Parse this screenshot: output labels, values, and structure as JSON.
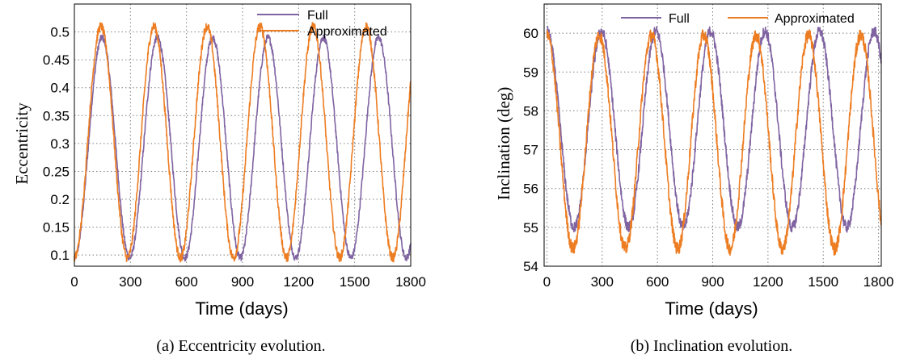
{
  "colors": {
    "full": "#8064a2",
    "approximated": "#ed7d22"
  },
  "chart_data": [
    {
      "type": "line",
      "caption": "(a)  Eccentricity evolution.",
      "xlabel": "Time (days)",
      "ylabel": "Eccentricity",
      "xlim": [
        0,
        1800
      ],
      "ylim": [
        0.08,
        0.55
      ],
      "xticks": [
        0,
        300,
        600,
        900,
        1200,
        1500,
        1800
      ],
      "yticks": [
        0.1,
        0.15,
        0.2,
        0.25,
        0.3,
        0.35,
        0.4,
        0.45,
        0.5
      ],
      "yticklabels": [
        "0.1",
        "0.15",
        "0.2",
        "0.25",
        "0.3",
        "0.35",
        "0.4",
        "0.45",
        "0.5"
      ],
      "grid": true,
      "legend": "top-right",
      "series": [
        {
          "name": "Full",
          "color": "#8064a2",
          "min": 0.095,
          "max": 0.49,
          "period": 296,
          "start_phase": "min",
          "noise": 0.006
        },
        {
          "name": "Approximated",
          "color": "#ed7d22",
          "min": 0.095,
          "max": 0.51,
          "period": 284,
          "start_phase": "min",
          "noise": 0.008
        }
      ]
    },
    {
      "type": "line",
      "caption": "(b)  Inclination evolution.",
      "xlabel": "Time (days)",
      "ylabel": "Inclination (deg)",
      "xlim": [
        -15,
        1815
      ],
      "ylim": [
        54,
        60.75
      ],
      "xticks": [
        0,
        300,
        600,
        900,
        1200,
        1500,
        1800
      ],
      "yticks": [
        54,
        55,
        56,
        57,
        58,
        59,
        60
      ],
      "yticklabels": [
        "54",
        "55",
        "56",
        "57",
        "58",
        "59",
        "60"
      ],
      "grid": true,
      "legend": "top-right",
      "series": [
        {
          "name": "Full",
          "color": "#8064a2",
          "min": 55.0,
          "max": 60.05,
          "period": 296,
          "start_phase": "max",
          "noise": 0.14
        },
        {
          "name": "Approximated",
          "color": "#ed7d22",
          "min": 54.45,
          "max": 59.95,
          "period": 284,
          "start_phase": "max",
          "noise": 0.17
        }
      ]
    }
  ]
}
